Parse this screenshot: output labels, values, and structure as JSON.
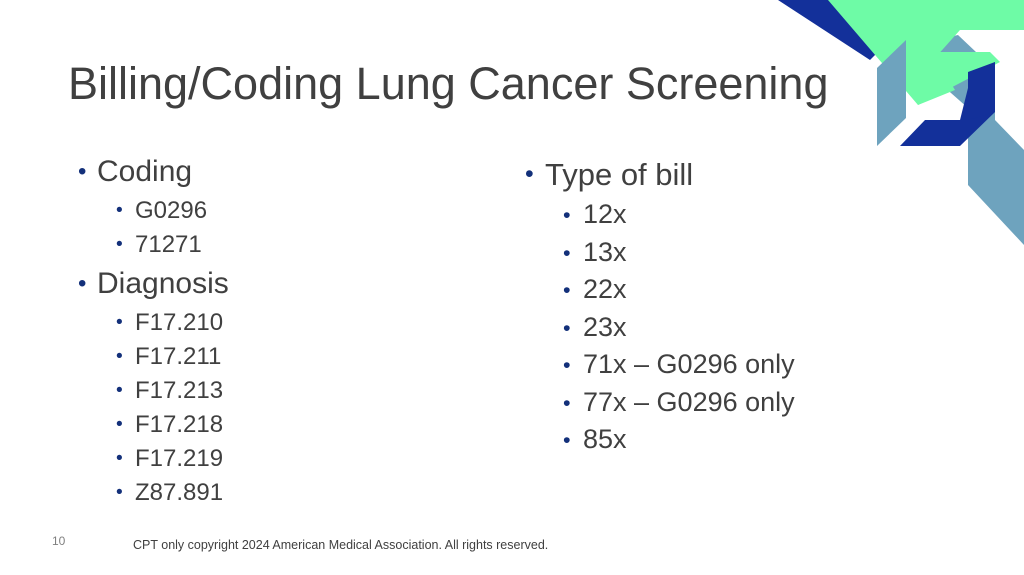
{
  "slide": {
    "title": "Billing/Coding Lung Cancer Screening",
    "left_column": [
      {
        "label": "Coding",
        "items": [
          "G0296",
          "71271"
        ]
      },
      {
        "label": "Diagnosis",
        "items": [
          "F17.210",
          "F17.211",
          "F17.213",
          "F17.218",
          "F17.219",
          "Z87.891"
        ]
      }
    ],
    "right_column": [
      {
        "label": "Type of bill",
        "items": [
          "12x",
          "13x",
          "22x",
          "23x",
          "71x – G0296 only",
          "77x – G0296 only",
          "85x"
        ]
      }
    ],
    "page_number": "10",
    "footer": "CPT only copyright 2024 American Medical Association. All rights reserved."
  },
  "colors": {
    "navy": "#13309a",
    "mint": "#6efba6",
    "steel_blue": "#6ea3be",
    "bullet": "#13307a",
    "text": "#404040"
  }
}
